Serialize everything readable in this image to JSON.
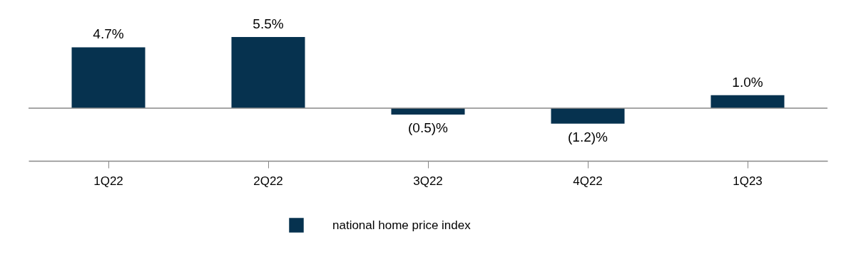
{
  "chart_data": {
    "type": "bar",
    "categories": [
      "1Q22",
      "2Q22",
      "3Q22",
      "4Q22",
      "1Q23"
    ],
    "series": [
      {
        "name": "national home price index",
        "color": "#06324f",
        "values": [
          4.7,
          5.5,
          -0.5,
          -1.2,
          1.0
        ],
        "value_labels": [
          "4.7%",
          "5.5%",
          "(0.5)%",
          "(1.2)%",
          "1.0%"
        ]
      }
    ],
    "legend": "bottom",
    "grid": false
  }
}
